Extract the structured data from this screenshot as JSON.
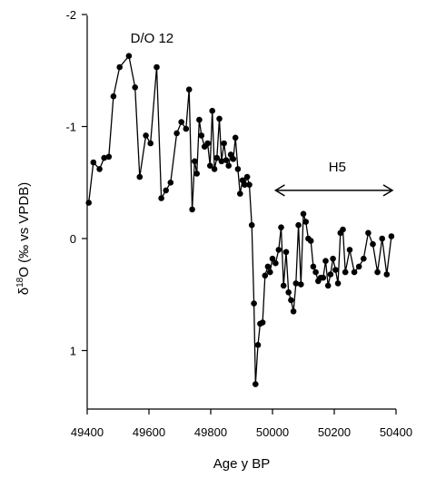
{
  "chart_data": {
    "type": "line",
    "title": "",
    "xlabel": "Age y BP",
    "ylabel": "δ¹⁸O (‰ vs VPDB)",
    "ylabel_parts": {
      "delta": "δ",
      "sup": "18",
      "rest": "O (‰ vs VPDB)"
    },
    "xlim": [
      49400,
      50400
    ],
    "ylim": [
      1.5,
      -2
    ],
    "y_inverted": true,
    "grid": false,
    "legend": "none",
    "xticks": [
      49400,
      49600,
      49800,
      50000,
      50200,
      50400
    ],
    "yticks": [
      -2,
      -1,
      0,
      1
    ],
    "ytick_labels": [
      "-2",
      "-1",
      "0",
      "1"
    ],
    "xtick_labels": [
      "49400",
      "49600",
      "49800",
      "50000",
      "50200",
      "50400"
    ],
    "annotations": [
      {
        "text": "D/O 12",
        "x": 49610,
        "y": -1.75
      },
      {
        "text": "H5",
        "x": 50210,
        "y": -0.6,
        "arrow_from": 50010,
        "arrow_to": 50400,
        "arrow_y": -0.43
      }
    ],
    "series": [
      {
        "color": "#000000",
        "marker": "circle",
        "x": [
          49405,
          49420,
          49440,
          49455,
          49470,
          49485,
          49505,
          49535,
          49555,
          49570,
          49590,
          49605,
          49625,
          49640,
          49655,
          49670,
          49690,
          49705,
          49720,
          49730,
          49740,
          49748,
          49755,
          49763,
          49770,
          49780,
          49790,
          49798,
          49805,
          49812,
          49820,
          49828,
          49835,
          49843,
          49850,
          49858,
          49865,
          49873,
          49880,
          49888,
          49895,
          49903,
          49910,
          49918,
          49925,
          49933,
          49940,
          49945,
          49953,
          49960,
          49968,
          49976,
          49985,
          49992,
          50000,
          50010,
          50020,
          50028,
          50036,
          50044,
          50052,
          50060,
          50068,
          50076,
          50084,
          50092,
          50100,
          50108,
          50116,
          50124,
          50132,
          50140,
          50148,
          50156,
          50164,
          50172,
          50180,
          50188,
          50196,
          50204,
          50212,
          50220,
          50228,
          50236,
          50250,
          50265,
          50280,
          50295,
          50310,
          50325,
          50340,
          50355,
          50370,
          50385
        ],
        "y": [
          -0.32,
          -0.68,
          -0.62,
          -0.72,
          -0.73,
          -1.27,
          -1.53,
          -1.63,
          -1.35,
          -0.55,
          -0.92,
          -0.85,
          -1.53,
          -0.36,
          -0.43,
          -0.5,
          -0.94,
          -1.04,
          -0.98,
          -1.33,
          -0.26,
          -0.69,
          -0.58,
          -1.06,
          -0.92,
          -0.82,
          -0.85,
          -0.65,
          -1.14,
          -0.62,
          -0.72,
          -1.07,
          -0.69,
          -0.85,
          -0.7,
          -0.65,
          -0.75,
          -0.71,
          -0.9,
          -0.62,
          -0.4,
          -0.52,
          -0.48,
          -0.55,
          -0.48,
          -0.12,
          0.58,
          1.3,
          0.95,
          0.76,
          0.75,
          0.33,
          0.25,
          0.3,
          0.18,
          0.22,
          0.1,
          -0.1,
          0.42,
          0.12,
          0.48,
          0.55,
          0.65,
          0.4,
          -0.12,
          0.41,
          -0.22,
          -0.15,
          0.0,
          0.02,
          0.25,
          0.3,
          0.38,
          0.35,
          0.35,
          0.2,
          0.42,
          0.32,
          0.18,
          0.28,
          0.4,
          -0.05,
          -0.08,
          0.3,
          0.1,
          0.3,
          0.25,
          0.18,
          -0.05,
          0.05,
          0.3,
          0.0,
          0.32,
          -0.02
        ]
      }
    ]
  }
}
